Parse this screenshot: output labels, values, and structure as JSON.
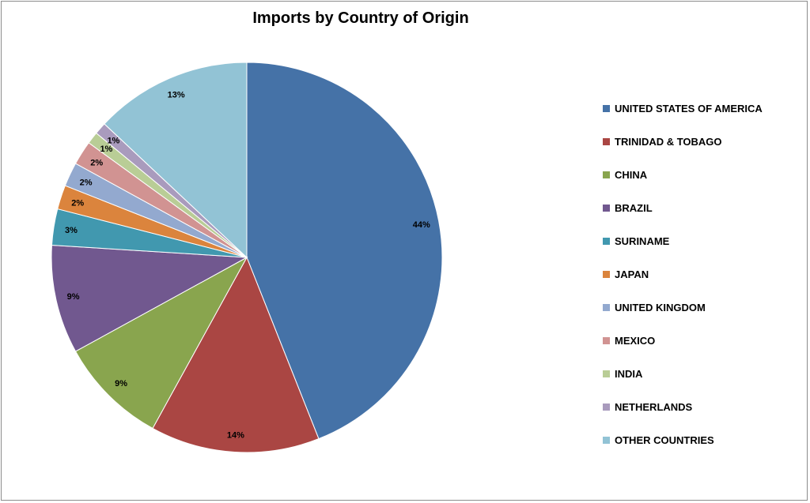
{
  "chart_data": {
    "type": "pie",
    "title": "Imports by Country of Origin",
    "legend_position": "right",
    "slices": [
      {
        "name": "UNITED STATES OF AMERICA",
        "value": 44,
        "label": "44%",
        "color": "#4572A7"
      },
      {
        "name": "TRINIDAD & TOBAGO",
        "value": 14,
        "label": "14%",
        "color": "#AA4643"
      },
      {
        "name": "CHINA",
        "value": 9,
        "label": "9%",
        "color": "#89A54E"
      },
      {
        "name": "BRAZIL",
        "value": 9,
        "label": "9%",
        "color": "#71588F"
      },
      {
        "name": "SURINAME",
        "value": 3,
        "label": "3%",
        "color": "#4198AF"
      },
      {
        "name": "JAPAN",
        "value": 2,
        "label": "2%",
        "color": "#DB843D"
      },
      {
        "name": "UNITED KINGDOM",
        "value": 2,
        "label": "2%",
        "color": "#93A9CF"
      },
      {
        "name": "MEXICO",
        "value": 2,
        "label": "2%",
        "color": "#D19392"
      },
      {
        "name": "INDIA",
        "value": 1,
        "label": "1%",
        "color": "#B9CD96"
      },
      {
        "name": "NETHERLANDS",
        "value": 1,
        "label": "1%",
        "color": "#A99BBD"
      },
      {
        "name": "OTHER COUNTRIES",
        "value": 13,
        "label": "13%",
        "color": "#92C3D5"
      }
    ]
  }
}
